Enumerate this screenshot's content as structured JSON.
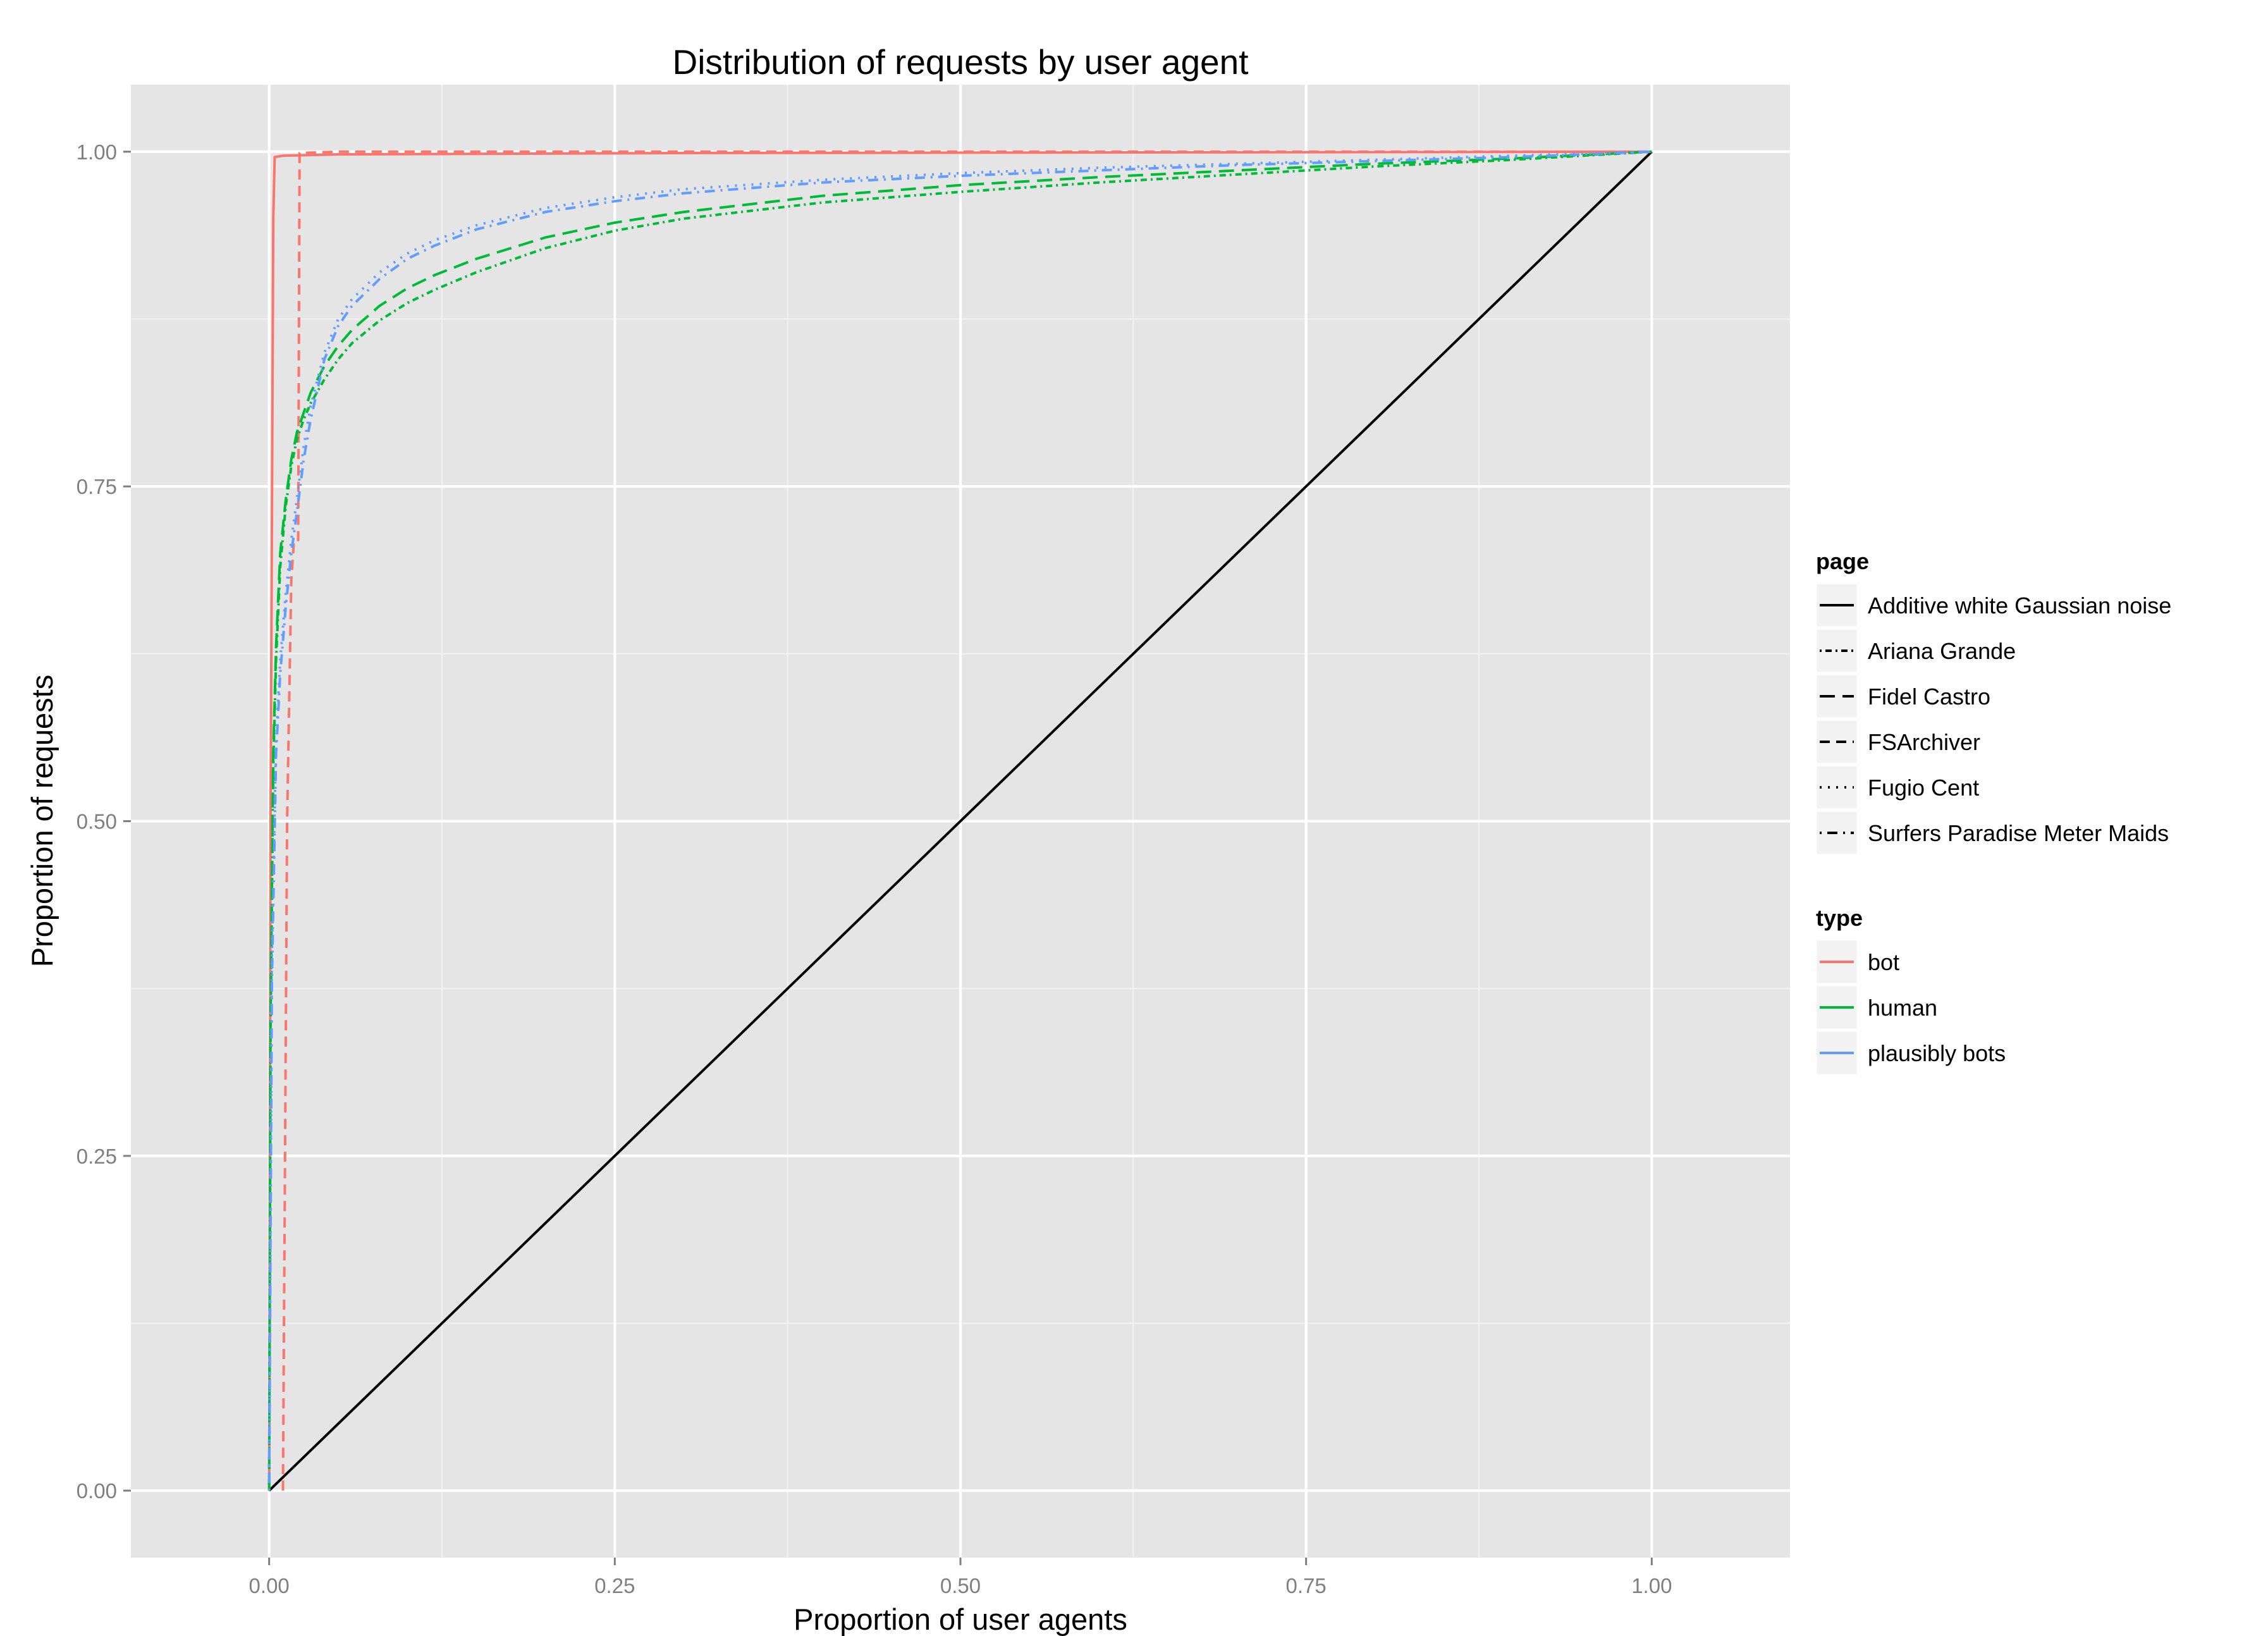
{
  "chart_data": {
    "type": "line",
    "title": "Distribution of requests by user agent",
    "xlabel": "Proportion of user agents",
    "ylabel": "Proportion of requests",
    "xlim": [
      -0.1,
      1.1
    ],
    "ylim": [
      -0.05,
      1.05
    ],
    "xticks": [
      0.0,
      0.25,
      0.5,
      0.75,
      1.0
    ],
    "xtick_labels": [
      "0.00",
      "0.25",
      "0.50",
      "0.75",
      "1.00"
    ],
    "yticks": [
      0.0,
      0.25,
      0.5,
      0.75,
      1.0
    ],
    "ytick_labels": [
      "0.00",
      "0.25",
      "0.50",
      "0.75",
      "1.00"
    ],
    "grid": true,
    "legend_position": "right",
    "legends": [
      {
        "title": "page",
        "kind": "linetype",
        "entries": [
          {
            "label": "Additive white Gaussian noise",
            "dash": "solid"
          },
          {
            "label": "Ariana Grande",
            "dash": "dotdash-fine"
          },
          {
            "label": "Fidel Castro",
            "dash": "dashed-long"
          },
          {
            "label": "FSArchiver",
            "dash": "dashed"
          },
          {
            "label": "Fugio Cent",
            "dash": "dotted"
          },
          {
            "label": "Surfers Paradise Meter Maids",
            "dash": "dotdash"
          }
        ]
      },
      {
        "title": "type",
        "kind": "color",
        "entries": [
          {
            "label": "bot",
            "color": "#f8766d"
          },
          {
            "label": "human",
            "color": "#00ba38"
          },
          {
            "label": "plausibly bots",
            "color": "#619cff"
          }
        ]
      }
    ],
    "series": [
      {
        "page": "Additive white Gaussian noise",
        "type": "bot",
        "color": "#000000",
        "dash": "solid",
        "x": [
          0,
          1
        ],
        "y": [
          0,
          1
        ]
      },
      {
        "page": "Fidel Castro",
        "type": "bot",
        "color": "#f8766d",
        "dash": "solid",
        "x": [
          0,
          0.001,
          0.003,
          0.004,
          0.01,
          0.05,
          0.3,
          1.0
        ],
        "y": [
          0,
          0.5,
          0.95,
          0.996,
          0.997,
          0.998,
          0.999,
          1.0
        ]
      },
      {
        "page": "FSArchiver",
        "type": "bot",
        "color": "#f8766d",
        "dash": "dashed",
        "x": [
          0.01,
          0.013,
          0.016,
          0.018,
          0.02,
          0.021,
          0.022,
          0.05,
          1.0
        ],
        "y": [
          0,
          0.5,
          0.68,
          0.71,
          0.71,
          0.71,
          0.999,
          1.0,
          1.0
        ]
      },
      {
        "page": "Fidel Castro",
        "type": "human",
        "color": "#00ba38",
        "dash": "dashed-long",
        "x": [
          0,
          0.001,
          0.003,
          0.005,
          0.008,
          0.012,
          0.016,
          0.02,
          0.025,
          0.03,
          0.04,
          0.05,
          0.06,
          0.08,
          0.1,
          0.12,
          0.15,
          0.2,
          0.25,
          0.3,
          0.4,
          0.5,
          0.6,
          0.7,
          0.8,
          0.9,
          1.0
        ],
        "y": [
          0,
          0.35,
          0.55,
          0.63,
          0.7,
          0.74,
          0.77,
          0.79,
          0.805,
          0.82,
          0.84,
          0.855,
          0.867,
          0.885,
          0.898,
          0.908,
          0.92,
          0.936,
          0.947,
          0.955,
          0.967,
          0.975,
          0.981,
          0.986,
          0.991,
          0.995,
          1.0
        ]
      },
      {
        "page": "Ariana Grande",
        "type": "human",
        "color": "#00ba38",
        "dash": "dotdash-fine",
        "x": [
          0,
          0.001,
          0.003,
          0.005,
          0.008,
          0.012,
          0.016,
          0.02,
          0.025,
          0.03,
          0.04,
          0.05,
          0.06,
          0.08,
          0.1,
          0.12,
          0.15,
          0.2,
          0.25,
          0.3,
          0.4,
          0.5,
          0.6,
          0.7,
          0.8,
          0.9,
          1.0
        ],
        "y": [
          0,
          0.34,
          0.54,
          0.62,
          0.69,
          0.735,
          0.765,
          0.785,
          0.8,
          0.812,
          0.83,
          0.845,
          0.857,
          0.874,
          0.887,
          0.897,
          0.91,
          0.928,
          0.941,
          0.95,
          0.962,
          0.97,
          0.977,
          0.983,
          0.989,
          0.994,
          1.0
        ]
      },
      {
        "page": "Fugio Cent",
        "type": "plausibly bots",
        "color": "#619cff",
        "dash": "dotted",
        "x": [
          0,
          0.002,
          0.005,
          0.008,
          0.012,
          0.016,
          0.02,
          0.025,
          0.03,
          0.04,
          0.05,
          0.06,
          0.08,
          0.1,
          0.12,
          0.15,
          0.2,
          0.25,
          0.3,
          0.4,
          0.5,
          0.6,
          0.7,
          0.8,
          0.9,
          1.0
        ],
        "y": [
          0,
          0.4,
          0.56,
          0.62,
          0.67,
          0.71,
          0.74,
          0.78,
          0.81,
          0.85,
          0.875,
          0.89,
          0.91,
          0.924,
          0.934,
          0.945,
          0.958,
          0.966,
          0.972,
          0.979,
          0.984,
          0.988,
          0.991,
          0.994,
          0.997,
          1.0
        ]
      },
      {
        "page": "Surfers Paradise Meter Maids",
        "type": "plausibly bots",
        "color": "#619cff",
        "dash": "dotdash",
        "x": [
          0,
          0.002,
          0.005,
          0.008,
          0.012,
          0.016,
          0.02,
          0.025,
          0.03,
          0.04,
          0.05,
          0.06,
          0.08,
          0.1,
          0.12,
          0.15,
          0.2,
          0.25,
          0.3,
          0.4,
          0.5,
          0.6,
          0.7,
          0.8,
          0.9,
          1.0
        ],
        "y": [
          0,
          0.38,
          0.55,
          0.61,
          0.66,
          0.7,
          0.73,
          0.77,
          0.8,
          0.845,
          0.87,
          0.885,
          0.905,
          0.92,
          0.93,
          0.942,
          0.955,
          0.963,
          0.969,
          0.977,
          0.982,
          0.986,
          0.99,
          0.993,
          0.996,
          1.0
        ]
      }
    ]
  }
}
